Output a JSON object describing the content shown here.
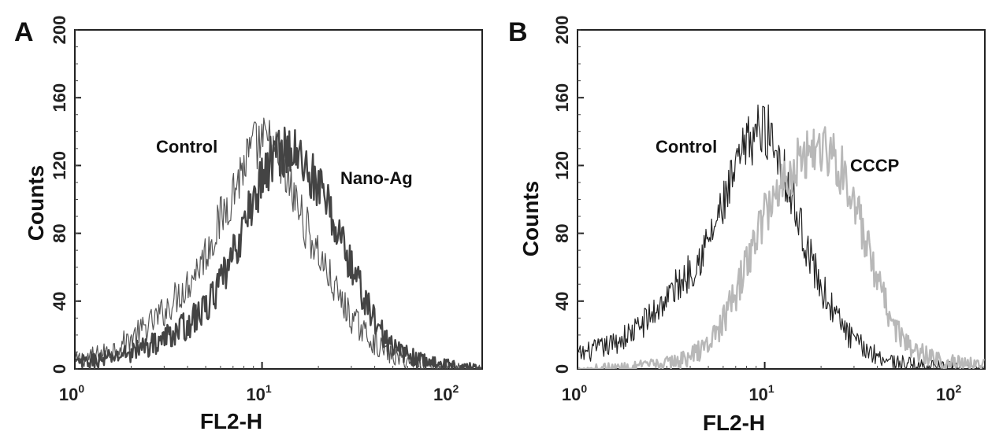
{
  "chart_data": [
    {
      "type": "line",
      "panel_label": "A",
      "xlabel": "FL2-H",
      "ylabel": "Counts",
      "x_scale": "log",
      "xlim": [
        1,
        150
      ],
      "ylim": [
        0,
        200
      ],
      "x_ticks": [
        {
          "value": 1,
          "base": "10",
          "exp": "0"
        },
        {
          "value": 10,
          "base": "10",
          "exp": "1"
        },
        {
          "value": 100,
          "base": "10",
          "exp": "2"
        }
      ],
      "y_ticks": [
        "0",
        "40",
        "80",
        "120",
        "160",
        "200"
      ],
      "y_tick_values": [
        0,
        40,
        80,
        120,
        160,
        200
      ],
      "grid": false,
      "annotations": [
        {
          "text": "Control",
          "series": "Control"
        },
        {
          "text": "Nano-Ag",
          "series": "Nano-Ag"
        }
      ],
      "series": [
        {
          "name": "Control",
          "color": "#555555",
          "stroke": "thin",
          "points": [
            [
              1,
              5
            ],
            [
              1.5,
              10
            ],
            [
              2,
              18
            ],
            [
              2.5,
              26
            ],
            [
              3,
              34
            ],
            [
              4,
              50
            ],
            [
              5,
              68
            ],
            [
              6,
              88
            ],
            [
              7,
              105
            ],
            [
              8,
              120
            ],
            [
              9,
              130
            ],
            [
              10,
              133
            ],
            [
              11,
              132
            ],
            [
              12,
              125
            ],
            [
              13,
              115
            ],
            [
              15,
              100
            ],
            [
              17,
              85
            ],
            [
              20,
              68
            ],
            [
              25,
              45
            ],
            [
              30,
              30
            ],
            [
              40,
              15
            ],
            [
              50,
              7
            ],
            [
              70,
              3
            ],
            [
              100,
              1
            ],
            [
              150,
              0
            ]
          ]
        },
        {
          "name": "Nano-Ag",
          "color": "#444444",
          "stroke": "thick",
          "points": [
            [
              1,
              3
            ],
            [
              1.5,
              6
            ],
            [
              2,
              10
            ],
            [
              2.5,
              14
            ],
            [
              3,
              18
            ],
            [
              4,
              26
            ],
            [
              5,
              36
            ],
            [
              6,
              50
            ],
            [
              7,
              66
            ],
            [
              8,
              84
            ],
            [
              9,
              100
            ],
            [
              10,
              112
            ],
            [
              11,
              122
            ],
            [
              12,
              128
            ],
            [
              13,
              130
            ],
            [
              15,
              127
            ],
            [
              17,
              120
            ],
            [
              20,
              108
            ],
            [
              25,
              84
            ],
            [
              30,
              60
            ],
            [
              40,
              28
            ],
            [
              50,
              12
            ],
            [
              70,
              5
            ],
            [
              100,
              2
            ],
            [
              150,
              0
            ]
          ]
        }
      ]
    },
    {
      "type": "line",
      "panel_label": "B",
      "xlabel": "FL2-H",
      "ylabel": "Counts",
      "x_scale": "log",
      "xlim": [
        1,
        150
      ],
      "ylim": [
        0,
        200
      ],
      "x_ticks": [
        {
          "value": 1,
          "base": "10",
          "exp": "0"
        },
        {
          "value": 10,
          "base": "10",
          "exp": "1"
        },
        {
          "value": 100,
          "base": "10",
          "exp": "2"
        }
      ],
      "y_ticks": [
        "0",
        "40",
        "80",
        "120",
        "160",
        "200"
      ],
      "y_tick_values": [
        0,
        40,
        80,
        120,
        160,
        200
      ],
      "grid": false,
      "annotations": [
        {
          "text": "Control",
          "series": "Control"
        },
        {
          "text": "CCCP",
          "series": "CCCP"
        }
      ],
      "series": [
        {
          "name": "Control",
          "color": "#222222",
          "stroke": "thin",
          "points": [
            [
              1,
              8
            ],
            [
              1.5,
              14
            ],
            [
              2,
              22
            ],
            [
              2.5,
              32
            ],
            [
              3,
              42
            ],
            [
              4,
              58
            ],
            [
              5,
              75
            ],
            [
              6,
              96
            ],
            [
              7,
              116
            ],
            [
              8,
              132
            ],
            [
              9,
              140
            ],
            [
              10,
              142
            ],
            [
              11,
              136
            ],
            [
              12,
              126
            ],
            [
              13,
              112
            ],
            [
              15,
              90
            ],
            [
              17,
              70
            ],
            [
              20,
              48
            ],
            [
              25,
              28
            ],
            [
              30,
              16
            ],
            [
              40,
              8
            ],
            [
              50,
              4
            ],
            [
              70,
              2
            ],
            [
              100,
              1
            ],
            [
              150,
              0
            ]
          ]
        },
        {
          "name": "CCCP",
          "color": "#b8b8b8",
          "stroke": "thick",
          "points": [
            [
              1,
              0
            ],
            [
              2,
              1
            ],
            [
              3,
              3
            ],
            [
              4,
              7
            ],
            [
              5,
              15
            ],
            [
              6,
              28
            ],
            [
              7,
              44
            ],
            [
              8,
              62
            ],
            [
              9,
              78
            ],
            [
              10,
              92
            ],
            [
              12,
              108
            ],
            [
              14,
              118
            ],
            [
              16,
              126
            ],
            [
              18,
              130
            ],
            [
              20,
              132
            ],
            [
              22,
              128
            ],
            [
              25,
              120
            ],
            [
              28,
              108
            ],
            [
              32,
              88
            ],
            [
              36,
              68
            ],
            [
              40,
              50
            ],
            [
              50,
              24
            ],
            [
              60,
              12
            ],
            [
              80,
              6
            ],
            [
              100,
              4
            ],
            [
              150,
              2
            ]
          ]
        }
      ]
    }
  ]
}
